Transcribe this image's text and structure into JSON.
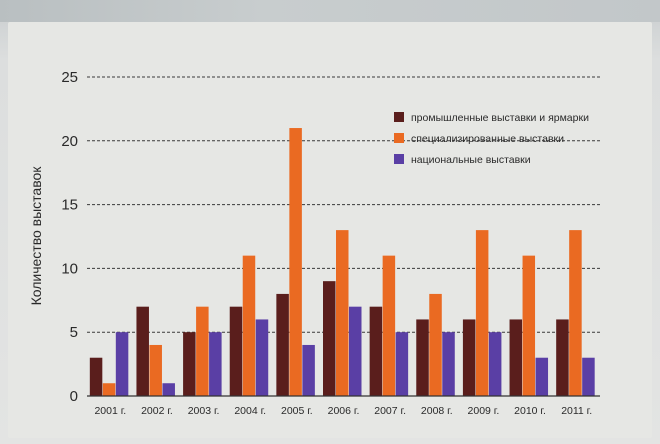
{
  "chart_data": {
    "type": "bar",
    "ylabel": "Количество выставок",
    "xlabel": "",
    "ylim": [
      0,
      25
    ],
    "yticks": [
      0,
      5,
      10,
      15,
      20,
      25
    ],
    "grid": true,
    "legend_position": "top-right",
    "categories": [
      "2001 г.",
      "2002 г.",
      "2003 г.",
      "2004 г.",
      "2005 г.",
      "2006 г.",
      "2007 г.",
      "2008 г.",
      "2009 г.",
      "2010 г.",
      "2011 г."
    ],
    "series": [
      {
        "name": "промышленные выставки и ярмарки",
        "color": "#5a1e1c",
        "values": [
          3,
          7,
          5,
          7,
          8,
          9,
          7,
          6,
          6,
          6,
          6
        ]
      },
      {
        "name": "специализированные выставки",
        "color": "#ea6a22",
        "values": [
          1,
          4,
          7,
          11,
          21,
          13,
          11,
          8,
          13,
          11,
          13
        ]
      },
      {
        "name": "национальные выставки",
        "color": "#5a3fa5",
        "values": [
          5,
          1,
          5,
          6,
          4,
          7,
          5,
          5,
          5,
          3,
          3
        ]
      }
    ]
  }
}
